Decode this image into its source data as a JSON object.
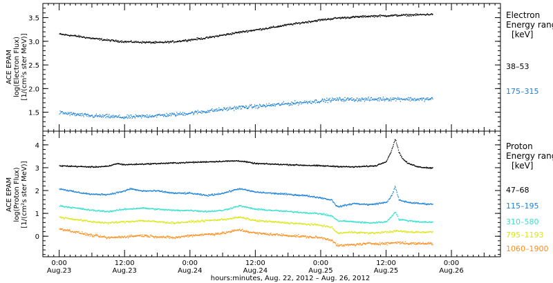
{
  "chart_data": [
    {
      "type": "scatter",
      "panel": "electron",
      "ylabel": [
        "ACE EPAM",
        "log(Electron Flux)",
        "[1/(cm²s ster MeV)]"
      ],
      "ylim": [
        1.1,
        3.8
      ],
      "yticks": [
        "1.5",
        "2.0",
        "2.5",
        "3.0",
        "3.5"
      ],
      "legend_title": [
        "Electron",
        "Energy ranges",
        "[keV]"
      ],
      "series": [
        {
          "name": "38–53",
          "color": "#000000",
          "points": [
            [
              0,
              3.16
            ],
            [
              3,
              3.12
            ],
            [
              6,
              3.07
            ],
            [
              9,
              3.03
            ],
            [
              12,
              3.0
            ],
            [
              15,
              2.99
            ],
            [
              18,
              2.98
            ],
            [
              21,
              3.0
            ],
            [
              24,
              3.04
            ],
            [
              27,
              3.08
            ],
            [
              30,
              3.14
            ],
            [
              33,
              3.2
            ],
            [
              36,
              3.25
            ],
            [
              39,
              3.3
            ],
            [
              42,
              3.36
            ],
            [
              45,
              3.41
            ],
            [
              48,
              3.46
            ],
            [
              51,
              3.5
            ],
            [
              54,
              3.52
            ],
            [
              57,
              3.54
            ],
            [
              60,
              3.55
            ],
            [
              63,
              3.56
            ],
            [
              66,
              3.57
            ],
            [
              68.5,
              3.58
            ]
          ],
          "noise": 0.03
        },
        {
          "name": "175–315",
          "color": "#1a80d9",
          "points": [
            [
              0,
              1.5
            ],
            [
              3,
              1.46
            ],
            [
              6,
              1.43
            ],
            [
              9,
              1.42
            ],
            [
              12,
              1.4
            ],
            [
              15,
              1.42
            ],
            [
              18,
              1.44
            ],
            [
              21,
              1.46
            ],
            [
              24,
              1.49
            ],
            [
              27,
              1.53
            ],
            [
              30,
              1.57
            ],
            [
              33,
              1.61
            ],
            [
              36,
              1.63
            ],
            [
              39,
              1.66
            ],
            [
              42,
              1.69
            ],
            [
              45,
              1.72
            ],
            [
              48,
              1.75
            ],
            [
              51,
              1.78
            ],
            [
              54,
              1.78
            ],
            [
              57,
              1.78
            ],
            [
              60,
              1.79
            ],
            [
              63,
              1.79
            ],
            [
              66,
              1.78
            ],
            [
              68.5,
              1.79
            ]
          ],
          "noise": 0.06
        }
      ]
    },
    {
      "type": "scatter",
      "panel": "proton",
      "ylabel": [
        "ACE EPAM",
        "log(Proton Flux)",
        "[1/(cm²s ster MeV)]"
      ],
      "ylim": [
        -0.9,
        4.6
      ],
      "yticks": [
        "0",
        "1",
        "2",
        "3",
        "4"
      ],
      "legend_title": [
        "Proton",
        "Energy ranges",
        "[keV]"
      ],
      "series": [
        {
          "name": "47–68",
          "color": "#000000",
          "points": [
            [
              0,
              3.1
            ],
            [
              6,
              3.05
            ],
            [
              9,
              3.08
            ],
            [
              10.5,
              3.2
            ],
            [
              12,
              3.15
            ],
            [
              18,
              3.2
            ],
            [
              24,
              3.25
            ],
            [
              30,
              3.3
            ],
            [
              33,
              3.32
            ],
            [
              36,
              3.2
            ],
            [
              42,
              3.15
            ],
            [
              48,
              3.1
            ],
            [
              54,
              3.05
            ],
            [
              58,
              3.1
            ],
            [
              60,
              3.3
            ],
            [
              61,
              3.8
            ],
            [
              61.6,
              4.3
            ],
            [
              62.3,
              3.7
            ],
            [
              63,
              3.4
            ],
            [
              64,
              3.2
            ],
            [
              66,
              3.05
            ],
            [
              68.5,
              3.0
            ]
          ],
          "noise": 0.04
        },
        {
          "name": "115–195",
          "color": "#1a80d9",
          "points": [
            [
              0,
              2.1
            ],
            [
              3,
              1.95
            ],
            [
              6,
              1.85
            ],
            [
              9,
              1.85
            ],
            [
              12,
              2.0
            ],
            [
              13,
              2.1
            ],
            [
              15,
              2.0
            ],
            [
              18,
              2.0
            ],
            [
              21,
              1.9
            ],
            [
              24,
              1.9
            ],
            [
              27,
              1.8
            ],
            [
              30,
              1.9
            ],
            [
              33,
              2.1
            ],
            [
              36,
              1.95
            ],
            [
              42,
              1.85
            ],
            [
              45,
              1.8
            ],
            [
              48,
              1.7
            ],
            [
              50,
              1.6
            ],
            [
              51,
              1.3
            ],
            [
              54,
              1.45
            ],
            [
              57,
              1.4
            ],
            [
              60,
              1.5
            ],
            [
              61,
              1.8
            ],
            [
              61.6,
              2.2
            ],
            [
              62.3,
              1.6
            ],
            [
              64,
              1.5
            ],
            [
              66,
              1.45
            ],
            [
              68.5,
              1.42
            ]
          ],
          "noise": 0.05
        },
        {
          "name": "310–580",
          "color": "#33e0cc",
          "points": [
            [
              0,
              1.35
            ],
            [
              3,
              1.25
            ],
            [
              6,
              1.15
            ],
            [
              9,
              1.1
            ],
            [
              12,
              1.2
            ],
            [
              15,
              1.25
            ],
            [
              18,
              1.2
            ],
            [
              21,
              1.15
            ],
            [
              24,
              1.15
            ],
            [
              27,
              1.1
            ],
            [
              30,
              1.15
            ],
            [
              33,
              1.35
            ],
            [
              36,
              1.2
            ],
            [
              42,
              1.1
            ],
            [
              45,
              1.05
            ],
            [
              48,
              1.0
            ],
            [
              50,
              0.9
            ],
            [
              51,
              0.7
            ],
            [
              54,
              0.65
            ],
            [
              57,
              0.6
            ],
            [
              60,
              0.65
            ],
            [
              61,
              0.9
            ],
            [
              61.6,
              1.1
            ],
            [
              62.3,
              0.75
            ],
            [
              64,
              0.7
            ],
            [
              66,
              0.65
            ],
            [
              68.5,
              0.63
            ]
          ],
          "noise": 0.05
        },
        {
          "name": "795–1193",
          "color": "#d9e61a",
          "points": [
            [
              0,
              0.85
            ],
            [
              3,
              0.75
            ],
            [
              6,
              0.65
            ],
            [
              9,
              0.6
            ],
            [
              12,
              0.65
            ],
            [
              15,
              0.7
            ],
            [
              18,
              0.65
            ],
            [
              21,
              0.6
            ],
            [
              24,
              0.65
            ],
            [
              27,
              0.7
            ],
            [
              30,
              0.75
            ],
            [
              33,
              0.85
            ],
            [
              36,
              0.7
            ],
            [
              42,
              0.6
            ],
            [
              45,
              0.55
            ],
            [
              48,
              0.5
            ],
            [
              50,
              0.4
            ],
            [
              51,
              0.15
            ],
            [
              54,
              0.2
            ],
            [
              57,
              0.15
            ],
            [
              60,
              0.2
            ],
            [
              62,
              0.25
            ],
            [
              64,
              0.2
            ],
            [
              66,
              0.2
            ],
            [
              68.5,
              0.2
            ]
          ],
          "noise": 0.06
        },
        {
          "name": "1060–1900",
          "color": "#ff8c1a",
          "points": [
            [
              0,
              0.35
            ],
            [
              3,
              0.2
            ],
            [
              6,
              0.05
            ],
            [
              9,
              -0.05
            ],
            [
              12,
              0.0
            ],
            [
              15,
              0.05
            ],
            [
              18,
              0.0
            ],
            [
              21,
              -0.05
            ],
            [
              24,
              0.05
            ],
            [
              27,
              0.1
            ],
            [
              30,
              0.15
            ],
            [
              33,
              0.3
            ],
            [
              36,
              0.15
            ],
            [
              42,
              0.05
            ],
            [
              45,
              0.0
            ],
            [
              48,
              -0.05
            ],
            [
              50,
              -0.15
            ],
            [
              51,
              -0.4
            ],
            [
              54,
              -0.35
            ],
            [
              57,
              -0.3
            ],
            [
              60,
              -0.3
            ],
            [
              62,
              -0.25
            ],
            [
              64,
              -0.3
            ],
            [
              66,
              -0.3
            ],
            [
              68.5,
              -0.3
            ]
          ],
          "noise": 0.08
        }
      ]
    }
  ],
  "xaxis": {
    "label": "hours:minutes, Aug. 22, 2012 – Aug. 26, 2012",
    "range_hours": [
      -3,
      81
    ],
    "ticks": [
      {
        "hour": 0,
        "time": "0:00",
        "date": "Aug.23"
      },
      {
        "hour": 12,
        "time": "12:00",
        "date": "Aug.23"
      },
      {
        "hour": 24,
        "time": "0:00",
        "date": "Aug.24"
      },
      {
        "hour": 36,
        "time": "12:00",
        "date": "Aug.24"
      },
      {
        "hour": 48,
        "time": "0:00",
        "date": "Aug.25"
      },
      {
        "hour": 60,
        "time": "12:00",
        "date": "Aug.25"
      },
      {
        "hour": 72,
        "time": "0:00",
        "date": "Aug.26"
      }
    ],
    "minor_step_hours": 1,
    "mid_step_hours": 6
  }
}
